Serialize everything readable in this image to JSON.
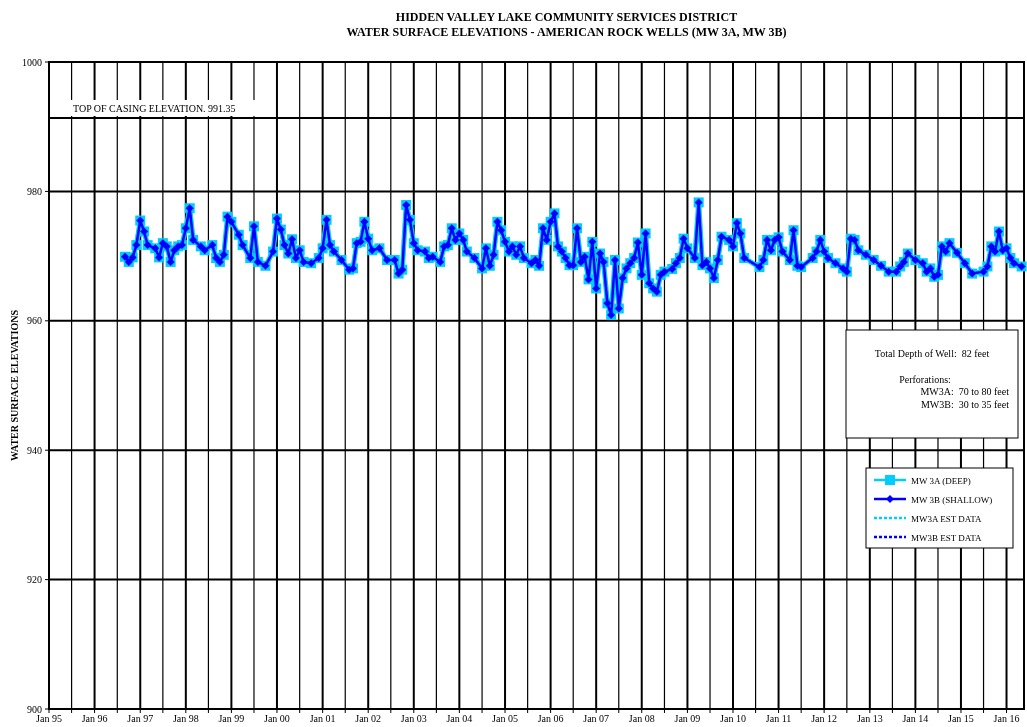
{
  "chart_data": {
    "type": "line",
    "title": "HIDDEN VALLEY LAKE COMMUNITY SERVICES DISTRICT",
    "subtitle": "WATER SURFACE ELEVATIONS - AMERICAN ROCK WELLS (MW 3A, MW 3B)",
    "ylabel": "WATER SURFACE ELEVATIONS",
    "x": [
      "1996-09",
      "1996-10",
      "1996-11",
      "1996-12",
      "1997-01",
      "1997-02",
      "1997-03",
      "1997-05",
      "1997-06",
      "1997-07",
      "1997-08",
      "1997-09",
      "1997-10",
      "1997-11",
      "1997-12",
      "1998-01",
      "1998-02",
      "1998-03",
      "1998-05",
      "1998-06",
      "1998-08",
      "1998-09",
      "1998-10",
      "1998-11",
      "1998-12",
      "1999-01",
      "1999-03",
      "1999-04",
      "1999-06",
      "1999-07",
      "1999-08",
      "1999-10",
      "1999-12",
      "2000-01",
      "2000-02",
      "2000-03",
      "2000-04",
      "2000-05",
      "2000-06",
      "2000-07",
      "2000-08",
      "2000-10",
      "2000-12",
      "2001-01",
      "2001-02",
      "2001-03",
      "2001-04",
      "2001-06",
      "2001-08",
      "2001-09",
      "2001-10",
      "2001-11",
      "2001-12",
      "2002-01",
      "2002-02",
      "2002-04",
      "2002-06",
      "2002-08",
      "2002-09",
      "2002-10",
      "2002-11",
      "2002-12",
      "2003-01",
      "2003-02",
      "2003-04",
      "2003-05",
      "2003-06",
      "2003-08",
      "2003-09",
      "2003-10",
      "2003-11",
      "2003-12",
      "2004-01",
      "2004-02",
      "2004-03",
      "2004-05",
      "2004-07",
      "2004-08",
      "2004-09",
      "2004-10",
      "2004-11",
      "2004-12",
      "2005-01",
      "2005-02",
      "2005-03",
      "2005-04",
      "2005-05",
      "2005-06",
      "2005-08",
      "2005-09",
      "2005-10",
      "2005-11",
      "2005-12",
      "2006-01",
      "2006-02",
      "2006-03",
      "2006-04",
      "2006-05",
      "2006-06",
      "2006-07",
      "2006-08",
      "2006-09",
      "2006-10",
      "2006-11",
      "2006-12",
      "2007-01",
      "2007-02",
      "2007-03",
      "2007-04",
      "2007-05",
      "2007-06",
      "2007-07",
      "2007-08",
      "2007-09",
      "2007-10",
      "2007-11",
      "2007-12",
      "2008-01",
      "2008-02",
      "2008-03",
      "2008-04",
      "2008-05",
      "2008-06",
      "2008-07",
      "2008-09",
      "2008-10",
      "2008-11",
      "2008-12",
      "2009-01",
      "2009-03",
      "2009-04",
      "2009-05",
      "2009-06",
      "2009-07",
      "2009-08",
      "2009-09",
      "2009-10",
      "2009-12",
      "2010-01",
      "2010-02",
      "2010-03",
      "2010-04",
      "2010-08",
      "2010-09",
      "2010-10",
      "2010-11",
      "2010-12",
      "2011-01",
      "2011-02",
      "2011-04",
      "2011-05",
      "2011-06",
      "2011-07",
      "2011-10",
      "2011-11",
      "2011-12",
      "2012-01",
      "2012-02",
      "2012-04",
      "2012-06",
      "2012-07",
      "2012-08",
      "2012-09",
      "2012-10",
      "2012-12",
      "2013-02",
      "2013-04",
      "2013-06",
      "2013-08",
      "2013-09",
      "2013-10",
      "2013-11",
      "2014-01",
      "2014-03",
      "2014-04",
      "2014-05",
      "2014-06",
      "2014-07",
      "2014-08",
      "2014-09",
      "2014-10",
      "2014-12",
      "2015-02",
      "2015-04",
      "2015-07",
      "2015-08",
      "2015-09",
      "2015-10",
      "2015-11",
      "2015-12",
      "2016-01",
      "2016-02",
      "2016-03",
      "2016-05"
    ],
    "series": [
      {
        "name": "MW 3A (DEEP)",
        "color": "#00ccff",
        "marker": "square",
        "line_style": "solid",
        "values": [
          969.9,
          969.1,
          969.8,
          971.7,
          975.5,
          973.8,
          971.7,
          971.2,
          969.8,
          972.0,
          971.5,
          969.1,
          970.9,
          971.5,
          971.7,
          974.3,
          977.4,
          972.5,
          971.5,
          970.9,
          971.7,
          969.7,
          969.1,
          970.2,
          976.1,
          975.3,
          973.3,
          971.7,
          969.7,
          974.6,
          969.1,
          968.5,
          970.7,
          975.8,
          974.1,
          971.7,
          970.4,
          972.6,
          969.7,
          970.9,
          969.1,
          968.9,
          969.7,
          971.2,
          975.6,
          971.7,
          970.7,
          969.4,
          967.9,
          968.1,
          972.0,
          972.2,
          975.3,
          972.7,
          970.9,
          971.2,
          969.4,
          969.4,
          967.3,
          967.9,
          977.9,
          975.6,
          972.0,
          970.9,
          970.7,
          969.7,
          969.9,
          969.1,
          971.5,
          971.7,
          974.3,
          972.5,
          973.5,
          972.5,
          970.7,
          969.7,
          968.1,
          971.2,
          968.5,
          970.2,
          975.3,
          974.0,
          972.2,
          970.7,
          971.5,
          970.2,
          971.5,
          969.7,
          968.9,
          969.4,
          968.5,
          974.3,
          972.5,
          975.3,
          976.6,
          971.5,
          970.7,
          969.7,
          968.6,
          968.6,
          974.3,
          969.1,
          969.9,
          966.4,
          972.2,
          965.0,
          970.4,
          969.1,
          962.7,
          960.9,
          969.4,
          961.9,
          966.6,
          968.1,
          968.9,
          969.7,
          972.1,
          967.1,
          973.5,
          965.8,
          965.0,
          964.5,
          967.1,
          967.6,
          968.0,
          968.9,
          969.7,
          972.7,
          971.2,
          969.7,
          978.3,
          968.6,
          969.1,
          968.1,
          966.6,
          969.4,
          973.0,
          972.5,
          971.5,
          975.1,
          973.5,
          969.7,
          968.3,
          969.4,
          972.5,
          970.9,
          972.5,
          972.9,
          970.7,
          969.4,
          974.0,
          968.5,
          968.3,
          969.7,
          970.7,
          972.5,
          970.7,
          969.7,
          968.9,
          968.1,
          967.6,
          972.7,
          972.5,
          970.9,
          970.2,
          969.4,
          968.5,
          967.6,
          967.6,
          968.4,
          969.1,
          970.4,
          969.4,
          968.9,
          967.6,
          968.1,
          966.8,
          967.1,
          971.5,
          970.7,
          972.0,
          970.5,
          968.9,
          967.3,
          967.6,
          968.4,
          971.5,
          970.7,
          973.8,
          970.9,
          971.2,
          969.7,
          968.9,
          968.4
        ]
      },
      {
        "name": "MW 3B (SHALLOW)",
        "color": "#0000ff",
        "marker": "diamond",
        "line_style": "solid",
        "values": [
          969.9,
          969.1,
          969.8,
          971.7,
          975.5,
          973.8,
          971.7,
          971.2,
          969.8,
          972.0,
          971.5,
          969.1,
          970.9,
          971.5,
          971.7,
          974.3,
          977.4,
          972.5,
          971.5,
          970.9,
          971.7,
          969.7,
          969.1,
          970.2,
          976.1,
          975.3,
          973.3,
          971.7,
          969.7,
          974.6,
          969.1,
          968.5,
          970.7,
          975.8,
          974.1,
          971.7,
          970.4,
          972.6,
          969.7,
          970.9,
          969.1,
          968.9,
          969.7,
          971.2,
          975.6,
          971.7,
          970.7,
          969.4,
          967.9,
          968.1,
          972.0,
          972.2,
          975.3,
          972.7,
          970.9,
          971.2,
          969.4,
          969.4,
          967.3,
          967.9,
          977.9,
          975.6,
          972.0,
          970.9,
          970.7,
          969.7,
          969.9,
          969.1,
          971.5,
          971.7,
          974.3,
          972.5,
          973.5,
          972.5,
          970.7,
          969.7,
          968.1,
          971.2,
          968.5,
          970.2,
          975.3,
          974.0,
          972.2,
          970.7,
          971.5,
          970.2,
          971.5,
          969.7,
          968.9,
          969.4,
          968.5,
          974.3,
          972.5,
          975.3,
          976.6,
          971.5,
          970.7,
          969.7,
          968.6,
          968.6,
          974.3,
          969.1,
          969.9,
          966.4,
          972.2,
          965.0,
          970.4,
          969.1,
          962.7,
          960.9,
          969.4,
          961.9,
          966.6,
          968.1,
          968.9,
          969.7,
          972.1,
          967.1,
          973.5,
          965.8,
          965.0,
          964.5,
          967.1,
          967.6,
          968.0,
          968.9,
          969.7,
          972.7,
          971.2,
          969.7,
          978.3,
          968.6,
          969.1,
          968.1,
          966.6,
          969.4,
          973.0,
          972.5,
          971.5,
          975.1,
          973.5,
          969.7,
          968.3,
          969.4,
          972.5,
          970.9,
          972.5,
          972.9,
          970.7,
          969.4,
          974.0,
          968.5,
          968.3,
          969.7,
          970.7,
          972.5,
          970.7,
          969.7,
          968.9,
          968.1,
          967.6,
          972.7,
          972.5,
          970.9,
          970.2,
          969.4,
          968.5,
          967.6,
          967.6,
          968.4,
          969.1,
          970.4,
          969.4,
          968.9,
          967.6,
          968.1,
          966.8,
          967.1,
          971.5,
          970.7,
          972.0,
          970.5,
          968.9,
          967.3,
          967.6,
          968.4,
          971.5,
          970.7,
          973.8,
          970.9,
          971.2,
          969.7,
          968.9,
          968.4
        ]
      },
      {
        "name": "MW3A EST DATA",
        "color": "#00ccff",
        "marker": "none",
        "line_style": "dashed",
        "values": [
          null,
          null,
          null,
          null,
          null,
          null,
          null,
          null,
          null,
          null,
          null,
          null,
          null,
          null,
          null,
          null,
          null,
          null,
          null,
          null,
          null,
          null,
          null,
          null,
          null,
          null,
          null,
          null,
          null,
          null,
          null,
          null,
          null,
          null,
          null,
          null,
          null,
          null,
          null,
          null,
          null,
          null,
          null,
          null,
          null,
          null,
          null,
          null,
          null,
          null,
          null,
          null,
          null,
          null,
          null,
          null,
          null,
          null,
          null,
          null,
          null,
          null,
          null,
          null,
          null,
          null,
          null,
          null,
          null,
          null,
          null,
          null,
          null,
          null,
          null,
          null,
          null,
          null,
          null,
          null,
          null,
          null,
          null,
          null,
          null,
          null,
          null,
          null,
          null,
          null,
          null,
          null,
          null,
          null,
          null,
          null,
          null,
          null,
          null,
          null,
          null,
          null,
          null,
          null,
          null,
          null,
          null,
          null,
          null,
          null,
          null,
          null,
          null,
          null,
          null,
          null,
          null,
          null,
          null,
          null,
          null,
          null,
          null,
          null,
          null,
          null,
          null,
          null,
          null,
          null,
          null,
          null,
          null,
          null,
          null,
          null,
          null,
          null,
          null,
          null,
          null,
          null,
          null,
          null,
          null,
          null,
          null,
          null,
          null,
          null,
          null,
          null,
          null,
          null,
          null,
          null,
          null,
          null,
          null,
          null,
          null,
          null,
          null,
          null,
          null,
          null,
          null,
          null,
          null,
          null,
          null,
          null,
          null,
          null,
          null,
          null,
          null,
          null,
          null,
          null,
          null,
          null,
          null,
          null,
          null,
          null,
          null,
          null,
          null,
          null,
          null,
          null,
          null,
          null
        ]
      },
      {
        "name": "MW3B EST DATA",
        "color": "#0000ff",
        "marker": "none",
        "line_style": "dashed",
        "values": [
          null,
          null,
          null,
          null,
          null,
          null,
          null,
          null,
          null,
          null,
          null,
          null,
          null,
          null,
          null,
          null,
          null,
          null,
          null,
          null,
          null,
          null,
          null,
          null,
          null,
          null,
          null,
          null,
          null,
          null,
          null,
          null,
          null,
          null,
          null,
          null,
          null,
          null,
          null,
          null,
          null,
          null,
          null,
          null,
          null,
          null,
          null,
          null,
          null,
          null,
          null,
          null,
          null,
          null,
          null,
          null,
          null,
          null,
          null,
          null,
          null,
          null,
          null,
          null,
          null,
          null,
          null,
          null,
          null,
          null,
          null,
          null,
          null,
          null,
          null,
          null,
          null,
          null,
          null,
          null,
          null,
          null,
          null,
          null,
          null,
          null,
          null,
          null,
          null,
          null,
          null,
          null,
          null,
          null,
          null,
          null,
          null,
          null,
          null,
          null,
          null,
          null,
          null,
          null,
          null,
          null,
          null,
          null,
          null,
          null,
          null,
          null,
          null,
          null,
          null,
          null,
          null,
          null,
          null,
          null,
          null,
          null,
          null,
          null,
          null,
          null,
          null,
          null,
          null,
          null,
          null,
          null,
          null,
          null,
          null,
          null,
          null,
          null,
          null,
          null,
          null,
          null,
          null,
          null,
          null,
          null,
          null,
          null,
          null,
          null,
          null,
          null,
          null,
          null,
          null,
          null,
          null,
          null,
          null,
          null,
          null,
          null,
          null,
          null,
          null,
          null,
          null,
          null,
          null,
          null,
          null,
          null,
          null,
          null,
          null,
          null,
          null,
          null,
          null,
          null,
          null,
          null,
          null,
          null,
          null,
          null,
          null,
          null,
          null,
          null,
          null,
          null,
          null,
          null
        ]
      }
    ],
    "xlim": [
      "1995-01-01",
      "2016-05-20"
    ],
    "xticks": [
      {
        "value": "1995-01",
        "label": "Jan 95"
      },
      {
        "value": "1995-07",
        "label": null
      },
      {
        "value": "1996-01",
        "label": "Jan 96"
      },
      {
        "value": "1996-07",
        "label": null
      },
      {
        "value": "1997-01",
        "label": "Jan 97"
      },
      {
        "value": "1997-07",
        "label": null
      },
      {
        "value": "1998-01",
        "label": "Jan 98"
      },
      {
        "value": "1998-07",
        "label": null
      },
      {
        "value": "1999-01",
        "label": "Jan 99"
      },
      {
        "value": "1999-07",
        "label": null
      },
      {
        "value": "2000-01",
        "label": "Jan 00"
      },
      {
        "value": "2000-07",
        "label": null
      },
      {
        "value": "2001-01",
        "label": "Jan 01"
      },
      {
        "value": "2001-07",
        "label": null
      },
      {
        "value": "2002-01",
        "label": "Jan 02"
      },
      {
        "value": "2002-07",
        "label": null
      },
      {
        "value": "2003-01",
        "label": "Jan 03"
      },
      {
        "value": "2003-07",
        "label": null
      },
      {
        "value": "2004-01",
        "label": "Jan 04"
      },
      {
        "value": "2004-07",
        "label": null
      },
      {
        "value": "2005-01",
        "label": "Jan 05"
      },
      {
        "value": "2005-07",
        "label": null
      },
      {
        "value": "2006-01",
        "label": "Jan 06"
      },
      {
        "value": "2006-07",
        "label": null
      },
      {
        "value": "2007-01",
        "label": "Jan 07"
      },
      {
        "value": "2007-07",
        "label": null
      },
      {
        "value": "2008-01",
        "label": "Jan 08"
      },
      {
        "value": "2008-07",
        "label": null
      },
      {
        "value": "2009-01",
        "label": "Jan 09"
      },
      {
        "value": "2009-07",
        "label": null
      },
      {
        "value": "2010-01",
        "label": "Jan 10"
      },
      {
        "value": "2010-07",
        "label": null
      },
      {
        "value": "2011-01",
        "label": "Jan 11"
      },
      {
        "value": "2011-07",
        "label": null
      },
      {
        "value": "2012-01",
        "label": "Jan 12"
      },
      {
        "value": "2012-07",
        "label": null
      },
      {
        "value": "2013-01",
        "label": "Jan 13"
      },
      {
        "value": "2013-07",
        "label": null
      },
      {
        "value": "2014-01",
        "label": "Jan 14"
      },
      {
        "value": "2014-07",
        "label": null
      },
      {
        "value": "2015-01",
        "label": "Jan 15"
      },
      {
        "value": "2015-07",
        "label": null
      },
      {
        "value": "2016-01",
        "label": "Jan 16"
      }
    ],
    "ylim": [
      900,
      1000
    ],
    "yticks": [
      900,
      920,
      940,
      960,
      980,
      1000
    ],
    "grid": true,
    "legend": "right",
    "ref_lines": [
      {
        "axis": "y",
        "value": 991.35,
        "label": "TOP OF CASING ELEVATION. 991.35",
        "color": "#000000"
      }
    ],
    "annotations": [
      "Total Depth of Well:  82 feet",
      "Perforations:",
      "MW3A:  70 to 80 feet",
      "MW3B:  30 to 35 feet"
    ]
  }
}
